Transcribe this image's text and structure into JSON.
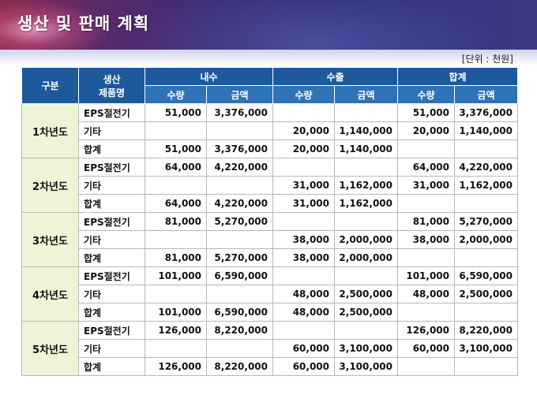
{
  "slide": {
    "title": "생산 및 판매 계획",
    "unit": "[단위 : 천원]"
  },
  "table": {
    "header": {
      "gubun": "구분",
      "product_top": "생산",
      "product_bottom": "제품명",
      "groups": [
        "내수",
        "수출",
        "합계"
      ],
      "sub": [
        "수량",
        "금액",
        "수량",
        "금액",
        "수량",
        "금액"
      ]
    },
    "years": [
      {
        "label": "1차년도",
        "rows": [
          {
            "product": "EPS절전기",
            "values": [
              "51,000",
              "3,376,000",
              "",
              "",
              "51,000",
              "3,376,000"
            ]
          },
          {
            "product": "기타",
            "values": [
              "",
              "",
              "20,000",
              "1,140,000",
              "20,000",
              "1,140,000"
            ]
          },
          {
            "product": "합계",
            "values": [
              "51,000",
              "3,376,000",
              "20,000",
              "1,140,000",
              "",
              ""
            ]
          }
        ]
      },
      {
        "label": "2차년도",
        "rows": [
          {
            "product": "EPS절전기",
            "values": [
              "64,000",
              "4,220,000",
              "",
              "",
              "64,000",
              "4,220,000"
            ]
          },
          {
            "product": "기타",
            "values": [
              "",
              "",
              "31,000",
              "1,162,000",
              "31,000",
              "1,162,000"
            ]
          },
          {
            "product": "합계",
            "values": [
              "64,000",
              "4,220,000",
              "31,000",
              "1,162,000",
              "",
              ""
            ]
          }
        ]
      },
      {
        "label": "3차년도",
        "rows": [
          {
            "product": "EPS절전기",
            "values": [
              "81,000",
              "5,270,000",
              "",
              "",
              "81,000",
              "5,270,000"
            ]
          },
          {
            "product": "기타",
            "values": [
              "",
              "",
              "38,000",
              "2,000,000",
              "38,000",
              "2,000,000"
            ]
          },
          {
            "product": "합계",
            "values": [
              "81,000",
              "5,270,000",
              "38,000",
              "2,000,000",
              "",
              ""
            ]
          }
        ]
      },
      {
        "label": "4차년도",
        "rows": [
          {
            "product": "EPS절전기",
            "values": [
              "101,000",
              "6,590,000",
              "",
              "",
              "101,000",
              "6,590,000"
            ]
          },
          {
            "product": "기타",
            "values": [
              "",
              "",
              "48,000",
              "2,500,000",
              "48,000",
              "2,500,000"
            ]
          },
          {
            "product": "합계",
            "values": [
              "101,000",
              "6,590,000",
              "48,000",
              "2,500,000",
              "",
              ""
            ]
          }
        ]
      },
      {
        "label": "5차년도",
        "rows": [
          {
            "product": "EPS절전기",
            "values": [
              "126,000",
              "8,220,000",
              "",
              "",
              "126,000",
              "8,220,000"
            ]
          },
          {
            "product": "기타",
            "values": [
              "",
              "",
              "60,000",
              "3,100,000",
              "60,000",
              "3,100,000"
            ]
          },
          {
            "product": "합계",
            "values": [
              "126,000",
              "8,220,000",
              "60,000",
              "3,100,000",
              "",
              ""
            ]
          }
        ]
      }
    ]
  }
}
